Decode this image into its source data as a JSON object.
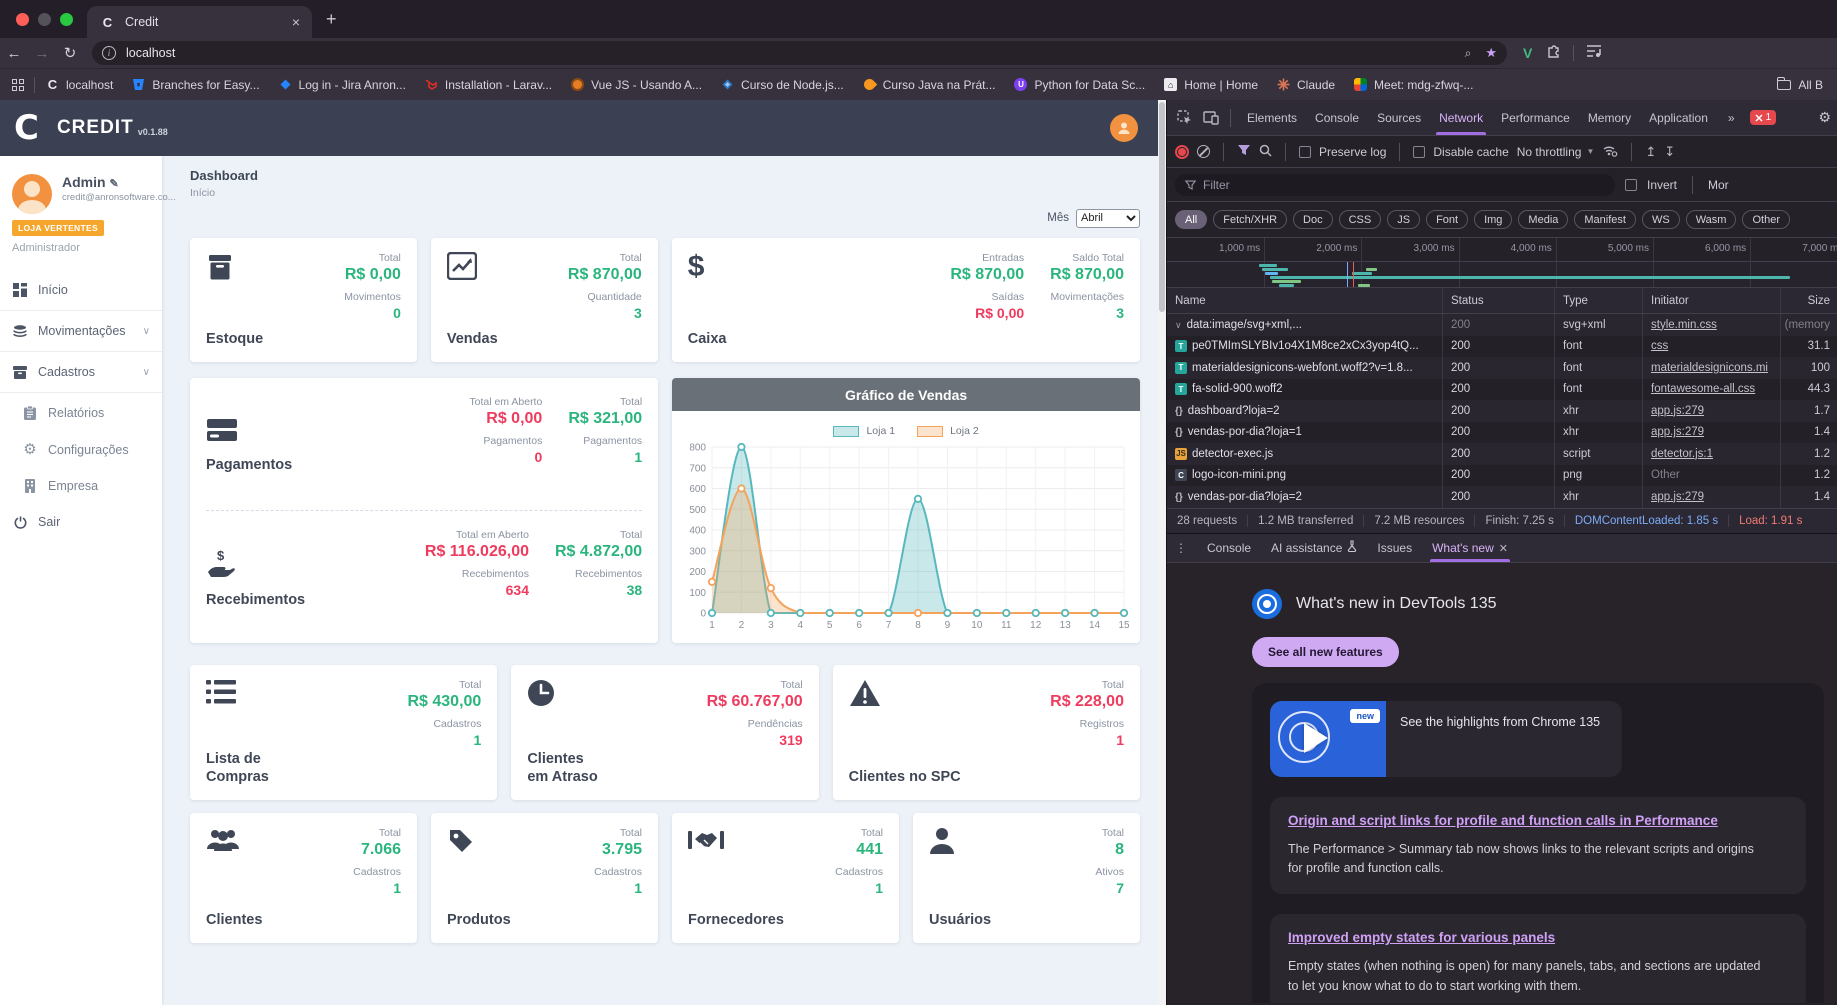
{
  "browser": {
    "tab": {
      "favicon": "C",
      "title": "Credit"
    },
    "url": "localhost",
    "bookmarks": [
      {
        "icon": "c-letter",
        "label": "localhost"
      },
      {
        "icon": "bitbucket",
        "label": "Branches for Easy..."
      },
      {
        "icon": "jira",
        "label": "Log in - Jira Anron..."
      },
      {
        "icon": "laravel",
        "label": "Installation - Larav..."
      },
      {
        "icon": "vue",
        "label": "Vue JS - Usando A..."
      },
      {
        "icon": "node",
        "label": "Curso de Node.js..."
      },
      {
        "icon": "java",
        "label": "Curso Java na Prát..."
      },
      {
        "icon": "python",
        "label": "Python for Data Sc..."
      },
      {
        "icon": "home",
        "label": "Home | Home"
      },
      {
        "icon": "claude",
        "label": "Claude"
      },
      {
        "icon": "meet",
        "label": "Meet: mdg-zfwq-..."
      }
    ],
    "all_bookmarks": "All B"
  },
  "app": {
    "logo_letter": "C",
    "logo_text": "CREDIT",
    "version": "v0.1.88",
    "user": {
      "name": "Admin",
      "email": "credit@anronsoftware.co...",
      "badge": "LOJA VERTENTES",
      "role": "Administrador"
    },
    "menu": [
      {
        "icon": "grid",
        "label": "Início",
        "chevron": false,
        "indent": false,
        "divider_after": true
      },
      {
        "icon": "stack",
        "label": "Movimentações",
        "chevron": true,
        "indent": false,
        "divider_after": true
      },
      {
        "icon": "archive",
        "label": "Cadastros",
        "chevron": true,
        "indent": false,
        "divider_after": true
      },
      {
        "icon": "clipboard",
        "label": "Relatórios",
        "chevron": false,
        "indent": true,
        "divider_after": false
      },
      {
        "icon": "gear",
        "label": "Configurações",
        "chevron": false,
        "indent": true,
        "divider_after": false
      },
      {
        "icon": "building",
        "label": "Empresa",
        "chevron": false,
        "indent": true,
        "divider_after": false
      },
      {
        "icon": "power",
        "label": "Sair",
        "chevron": false,
        "indent": false,
        "divider_after": false
      }
    ],
    "breadcrumb": {
      "title": "Dashboard",
      "subtitle": "Início"
    },
    "month_filter": {
      "label": "Mês",
      "value": "Abril"
    },
    "colors": {
      "green": "#2ab57d",
      "red": "#ee3b5e",
      "accent": "#3b4152"
    },
    "cards": {
      "row1": [
        {
          "id": "estoque",
          "icon": "box",
          "name": "Estoque",
          "cols": [
            [
              {
                "label": "Total",
                "value": "R$ 0,00",
                "color": "green"
              },
              {
                "label": "Movimentos",
                "value": "0",
                "color": "green"
              }
            ]
          ]
        },
        {
          "id": "vendas",
          "icon": "trend",
          "name": "Vendas",
          "cols": [
            [
              {
                "label": "Total",
                "value": "R$ 870,00",
                "color": "green"
              },
              {
                "label": "Quantidade",
                "value": "3",
                "color": "green"
              }
            ]
          ]
        },
        {
          "id": "caixa",
          "icon": "dollar",
          "name": "Caixa",
          "wide": true,
          "cols": [
            [
              {
                "label": "Entradas",
                "value": "R$ 870,00",
                "color": "green"
              },
              {
                "label": "Saídas",
                "value": "R$ 0,00",
                "color": "red"
              }
            ],
            [
              {
                "label": "Saldo Total",
                "value": "R$ 870,00",
                "color": "green"
              },
              {
                "label": "Movimentações",
                "value": "3",
                "color": "green"
              }
            ]
          ]
        }
      ],
      "payrec": [
        {
          "id": "pagamentos",
          "icon": "credit-card",
          "name": "Pagamentos",
          "cols": [
            [
              {
                "label": "Total em Aberto",
                "value": "R$ 0,00",
                "color": "red"
              },
              {
                "label": "Pagamentos",
                "value": "0",
                "color": "red"
              }
            ],
            [
              {
                "label": "Total",
                "value": "R$ 321,00",
                "color": "green"
              },
              {
                "label": "Pagamentos",
                "value": "1",
                "color": "green"
              }
            ]
          ]
        },
        {
          "id": "recebimentos",
          "icon": "hand-dollar",
          "name": "Recebimentos",
          "cols": [
            [
              {
                "label": "Total em Aberto",
                "value": "R$ 116.026,00",
                "color": "red"
              },
              {
                "label": "Recebimentos",
                "value": "634",
                "color": "red"
              }
            ],
            [
              {
                "label": "Total",
                "value": "R$ 4.872,00",
                "color": "green"
              },
              {
                "label": "Recebimentos",
                "value": "38",
                "color": "green"
              }
            ]
          ]
        }
      ],
      "row3": [
        {
          "id": "lista-compras",
          "icon": "list",
          "name": "Lista de Compras",
          "cols": [
            [
              {
                "label": "Total",
                "value": "R$ 430,00",
                "color": "green"
              },
              {
                "label": "Cadastros",
                "value": "1",
                "color": "green"
              }
            ]
          ]
        },
        {
          "id": "clientes-atraso",
          "icon": "clock",
          "name": "Clientes em Atraso",
          "cols": [
            [
              {
                "label": "Total",
                "value": "R$ 60.767,00",
                "color": "red"
              },
              {
                "label": "Pendências",
                "value": "319",
                "color": "red"
              }
            ]
          ]
        },
        {
          "id": "clientes-spc",
          "icon": "warning",
          "name": "Clientes no SPC",
          "cols": [
            [
              {
                "label": "Total",
                "value": "R$ 228,00",
                "color": "red"
              },
              {
                "label": "Registros",
                "value": "1",
                "color": "red"
              }
            ]
          ]
        }
      ],
      "row4": [
        {
          "id": "clientes",
          "icon": "users",
          "name": "Clientes",
          "cols": [
            [
              {
                "label": "Total",
                "value": "7.066",
                "color": "green"
              },
              {
                "label": "Cadastros",
                "value": "1",
                "color": "green"
              }
            ]
          ]
        },
        {
          "id": "produtos",
          "icon": "tag",
          "name": "Produtos",
          "cols": [
            [
              {
                "label": "Total",
                "value": "3.795",
                "color": "green"
              },
              {
                "label": "Cadastros",
                "value": "1",
                "color": "green"
              }
            ]
          ]
        },
        {
          "id": "fornecedores",
          "icon": "handshake",
          "name": "Fornecedores",
          "cols": [
            [
              {
                "label": "Total",
                "value": "441",
                "color": "green"
              },
              {
                "label": "Cadastros",
                "value": "1",
                "color": "green"
              }
            ]
          ]
        },
        {
          "id": "usuarios",
          "icon": "user",
          "name": "Usuários",
          "cols": [
            [
              {
                "label": "Total",
                "value": "8",
                "color": "green"
              },
              {
                "label": "Ativos",
                "value": "7",
                "color": "green"
              }
            ]
          ]
        }
      ]
    }
  },
  "chart_data": {
    "type": "line",
    "title": "Gráfico de Vendas",
    "x": [
      1,
      2,
      3,
      4,
      5,
      6,
      7,
      8,
      9,
      10,
      11,
      12,
      13,
      14,
      15
    ],
    "series": [
      {
        "name": "Loja 1",
        "color": "#57b8bd",
        "fill": "rgba(87,184,189,0.32)",
        "values": [
          0,
          800,
          0,
          0,
          0,
          0,
          0,
          550,
          0,
          0,
          0,
          0,
          0,
          0,
          0
        ]
      },
      {
        "name": "Loja 2",
        "color": "#f5a25b",
        "fill": "rgba(245,162,91,0.30)",
        "values": [
          150,
          600,
          120,
          0,
          0,
          0,
          0,
          0,
          0,
          0,
          0,
          0,
          0,
          0,
          0
        ]
      }
    ],
    "ylim": [
      0,
      800
    ],
    "ytick_step": 100,
    "grid": true,
    "legend_position": "top"
  },
  "devtools": {
    "tabs": [
      "Elements",
      "Console",
      "Sources",
      "Network",
      "Performance",
      "Memory",
      "Application"
    ],
    "active_tab": "Network",
    "more_tabs": "»",
    "error_count": "1",
    "toolbar": {
      "preserve_log": "Preserve log",
      "disable_cache": "Disable cache",
      "throttling": "No throttling"
    },
    "filter": {
      "placeholder": "Filter",
      "invert": "Invert",
      "more": "Mor"
    },
    "chips": [
      "All",
      "Fetch/XHR",
      "Doc",
      "CSS",
      "JS",
      "Font",
      "Img",
      "Media",
      "Manifest",
      "WS",
      "Wasm",
      "Other"
    ],
    "selected_chip": "All",
    "ruler_ticks": [
      "1,000 ms",
      "2,000 ms",
      "3,000 ms",
      "4,000 ms",
      "5,000 ms",
      "6,000 ms",
      "7,000 ms"
    ],
    "overview_bars": [
      {
        "ms": 950,
        "len": 180,
        "row": 0,
        "color": "#4db6ac"
      },
      {
        "ms": 980,
        "len": 260,
        "row": 1,
        "color": "#4db6ac"
      },
      {
        "ms": 1010,
        "len": 130,
        "row": 2,
        "color": "#64b5f6"
      },
      {
        "ms": 1060,
        "len": 5350,
        "row": 3,
        "color": "#4db6ac"
      },
      {
        "ms": 1080,
        "len": 300,
        "row": 4,
        "color": "#81c784"
      },
      {
        "ms": 1150,
        "len": 160,
        "row": 5,
        "color": "#4db6ac"
      },
      {
        "ms": 1900,
        "len": 210,
        "row": 2,
        "color": "#4db6ac"
      },
      {
        "ms": 1960,
        "len": 130,
        "row": 5,
        "color": "#81c784"
      },
      {
        "ms": 2050,
        "len": 110,
        "row": 1,
        "color": "#81c784"
      }
    ],
    "marker_lines": [
      {
        "ms": 1850,
        "color": "#7cacf8"
      },
      {
        "ms": 1910,
        "color": "#ee5a5a"
      }
    ],
    "table": {
      "headers": [
        "Name",
        "Status",
        "Type",
        "Initiator",
        "Size"
      ],
      "rows": [
        {
          "icon": "chev",
          "name": "data:image/svg+xml,...",
          "status": "200",
          "status_dim": true,
          "type": "svg+xml",
          "initiator": "style.min.css",
          "init_link": true,
          "size": "(memory"
        },
        {
          "icon": "font",
          "name": "pe0TMImSLYBIv1o4X1M8ce2xCx3yop4tQ...",
          "status": "200",
          "status_dim": false,
          "type": "font",
          "initiator": "css",
          "init_link": true,
          "size": "31.1"
        },
        {
          "icon": "font",
          "name": "materialdesignicons-webfont.woff2?v=1.8...",
          "status": "200",
          "status_dim": false,
          "type": "font",
          "initiator": "materialdesignicons.mi",
          "init_link": true,
          "size": "100"
        },
        {
          "icon": "font",
          "name": "fa-solid-900.woff2",
          "status": "200",
          "status_dim": false,
          "type": "font",
          "initiator": "fontawesome-all.css",
          "init_link": true,
          "size": "44.3"
        },
        {
          "icon": "xhr",
          "name": "dashboard?loja=2",
          "status": "200",
          "status_dim": false,
          "type": "xhr",
          "initiator": "app.js:279",
          "init_link": true,
          "size": "1.7"
        },
        {
          "icon": "xhr",
          "name": "vendas-por-dia?loja=1",
          "status": "200",
          "status_dim": false,
          "type": "xhr",
          "initiator": "app.js:279",
          "init_link": true,
          "size": "1.4"
        },
        {
          "icon": "script",
          "name": "detector-exec.js",
          "status": "200",
          "status_dim": false,
          "type": "script",
          "initiator": "detector.js:1",
          "init_link": true,
          "size": "1.2"
        },
        {
          "icon": "img",
          "name": "logo-icon-mini.png",
          "status": "200",
          "status_dim": false,
          "type": "png",
          "initiator": "Other",
          "init_link": false,
          "size": "1.2"
        },
        {
          "icon": "xhr",
          "name": "vendas-por-dia?loja=2",
          "status": "200",
          "status_dim": false,
          "type": "xhr",
          "initiator": "app.js:279",
          "init_link": true,
          "size": "1.4"
        }
      ]
    },
    "summary": [
      "28 requests",
      "1.2 MB transferred",
      "7.2 MB resources",
      "Finish: 7.25 s",
      "DOMContentLoaded: 1.85 s",
      "Load: 1.91 s"
    ],
    "drawer_tabs": [
      "Console",
      "AI assistance",
      "Issues",
      "What's new"
    ],
    "drawer_active": "What's new",
    "whats_new": {
      "heading": "What's new in DevTools 135",
      "button": "See all new features",
      "video_badge": "new",
      "video_caption": "See the highlights from Chrome 135",
      "features": [
        {
          "title": "Origin and script links for profile and function calls in Performance",
          "body": "The Performance > Summary tab now shows links to the relevant scripts and origins for profile and function calls."
        },
        {
          "title": "Improved empty states for various panels",
          "body": "Empty states (when nothing is open) for many panels, tabs, and sections are updated to let you know what to do to start working with them."
        }
      ]
    }
  }
}
